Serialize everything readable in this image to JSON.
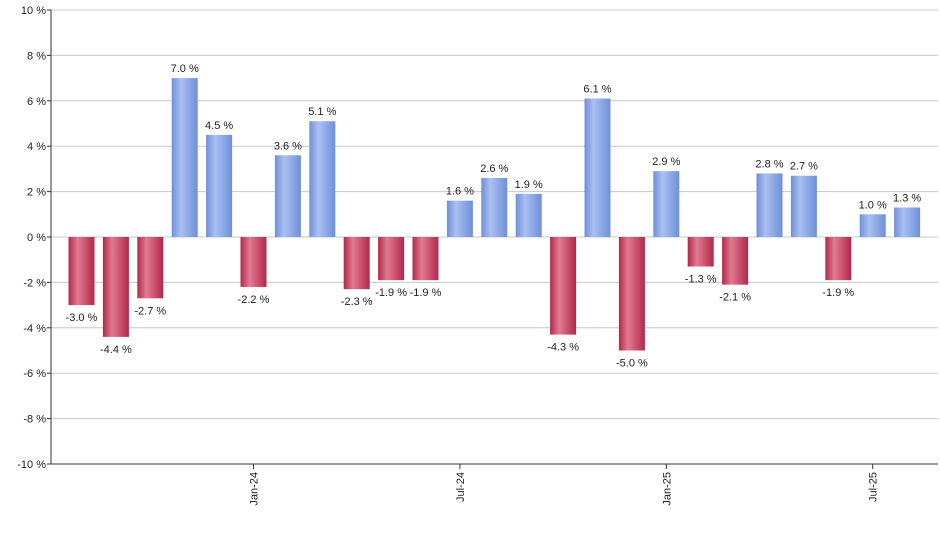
{
  "chart_data": {
    "type": "bar",
    "title": "",
    "xlabel": "",
    "ylabel": "",
    "ylim": [
      -10,
      10
    ],
    "y_tick_step": 2,
    "y_tick_suffix": " %",
    "grid": true,
    "values": [
      -3.0,
      -4.4,
      -2.7,
      7.0,
      4.5,
      -2.2,
      3.6,
      5.1,
      -2.3,
      -1.9,
      -1.9,
      1.6,
      2.6,
      1.9,
      -4.3,
      6.1,
      -5.0,
      2.9,
      -1.3,
      -2.1,
      2.8,
      2.7,
      -1.9,
      1.0,
      1.3
    ],
    "data_labels": [
      "-3.0 %",
      "-4.4 %",
      "-2.7 %",
      "7.0 %",
      "4.5 %",
      "-2.2 %",
      "3.6 %",
      "5.1 %",
      "-2.3 %",
      "-1.9 %",
      "-1.9 %",
      "1.6 %",
      "2.6 %",
      "1.9 %",
      "-4.3 %",
      "6.1 %",
      "-5.0 %",
      "2.9 %",
      "-1.3 %",
      "-2.1 %",
      "2.8 %",
      "2.7 %",
      "-1.9 %",
      "1.0 %",
      "1.3 %"
    ],
    "x_ticks": [
      {
        "label": "Jan-24",
        "bar_index": 5
      },
      {
        "label": "Jul-24",
        "bar_index": 11
      },
      {
        "label": "Jan-25",
        "bar_index": 17
      },
      {
        "label": "Jul-25",
        "bar_index": 23
      }
    ],
    "colors": {
      "positive": "#6f8fd8",
      "positive_light": "#a9c0f2",
      "negative": "#b3284a",
      "negative_light": "#e07a92",
      "grid": "#c8c8c8",
      "axis": "#333333"
    }
  }
}
